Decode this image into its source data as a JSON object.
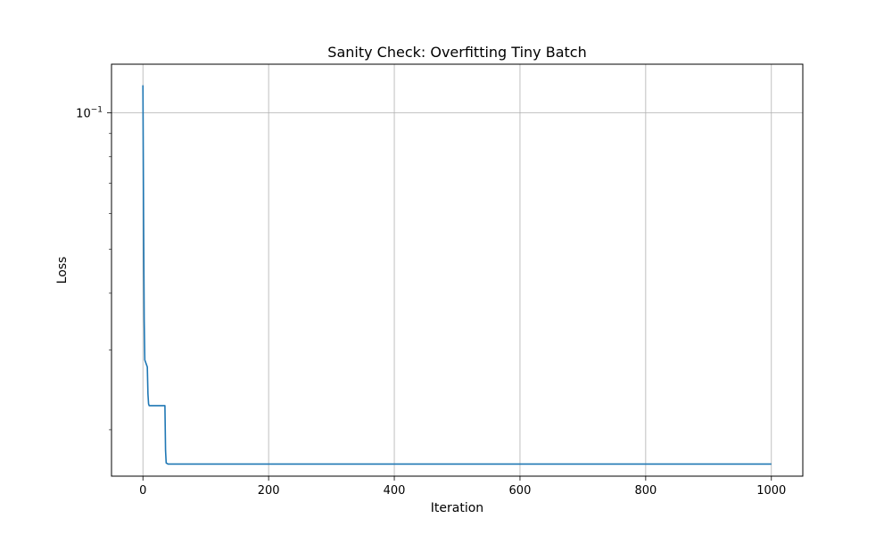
{
  "chart_data": {
    "type": "line",
    "title": "Sanity Check: Overfitting Tiny Batch",
    "xlabel": "Iteration",
    "ylabel": "Loss",
    "xlim": [
      -50,
      1050
    ],
    "ylim": [
      0.0158,
      0.128
    ],
    "yscale": "log",
    "grid": true,
    "x_ticks": [
      0,
      200,
      400,
      600,
      800,
      1000
    ],
    "x_tick_labels": [
      "0",
      "200",
      "400",
      "600",
      "800",
      "1000"
    ],
    "y_major_ticks": [
      0.1
    ],
    "y_major_tick_base": "10",
    "y_major_tick_exp": "−1",
    "y_minor_ticks": [
      0.02,
      0.03,
      0.04,
      0.05,
      0.06,
      0.07,
      0.08,
      0.09
    ],
    "series": [
      {
        "color": "#1f77b4",
        "points": [
          [
            0,
            0.115
          ],
          [
            1,
            0.06
          ],
          [
            2,
            0.035
          ],
          [
            3,
            0.0285
          ],
          [
            5,
            0.028
          ],
          [
            7,
            0.0275
          ],
          [
            8,
            0.024
          ],
          [
            9,
            0.0228
          ],
          [
            10,
            0.0226
          ],
          [
            20,
            0.0226
          ],
          [
            30,
            0.0226
          ],
          [
            35,
            0.0226
          ],
          [
            36,
            0.018
          ],
          [
            37,
            0.0169
          ],
          [
            40,
            0.0168
          ],
          [
            60,
            0.0168
          ],
          [
            80,
            0.0168
          ],
          [
            100,
            0.0168
          ],
          [
            200,
            0.0168
          ],
          [
            300,
            0.0168
          ],
          [
            400,
            0.0168
          ],
          [
            500,
            0.0168
          ],
          [
            600,
            0.0168
          ],
          [
            700,
            0.0168
          ],
          [
            800,
            0.0168
          ],
          [
            900,
            0.0168
          ],
          [
            1000,
            0.0168
          ]
        ]
      }
    ]
  }
}
